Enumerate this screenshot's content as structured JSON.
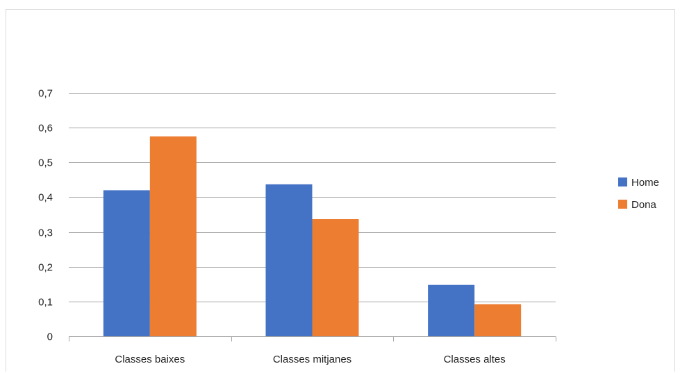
{
  "chart_data": {
    "type": "bar",
    "title": "",
    "xlabel": "",
    "ylabel": "",
    "categories": [
      "Classes baixes",
      "Classes mitjanes",
      "Classes altes"
    ],
    "series": [
      {
        "name": "Home",
        "color": "#4472c4",
        "values": [
          0.42,
          0.437,
          0.148
        ]
      },
      {
        "name": "Dona",
        "color": "#ed7d31",
        "values": [
          0.575,
          0.337,
          0.092
        ]
      }
    ],
    "ylim": [
      0,
      0.7
    ],
    "y_ticks": [
      0,
      0.1,
      0.2,
      0.3,
      0.4,
      0.5,
      0.6,
      0.7
    ],
    "y_tick_labels": [
      "0",
      "0,1",
      "0,2",
      "0,3",
      "0,4",
      "0,5",
      "0,6",
      "0,7"
    ],
    "grid": true,
    "legend_position": "right",
    "gridline_color": "#a6a6a6",
    "axis_color": "#a6a6a6"
  }
}
